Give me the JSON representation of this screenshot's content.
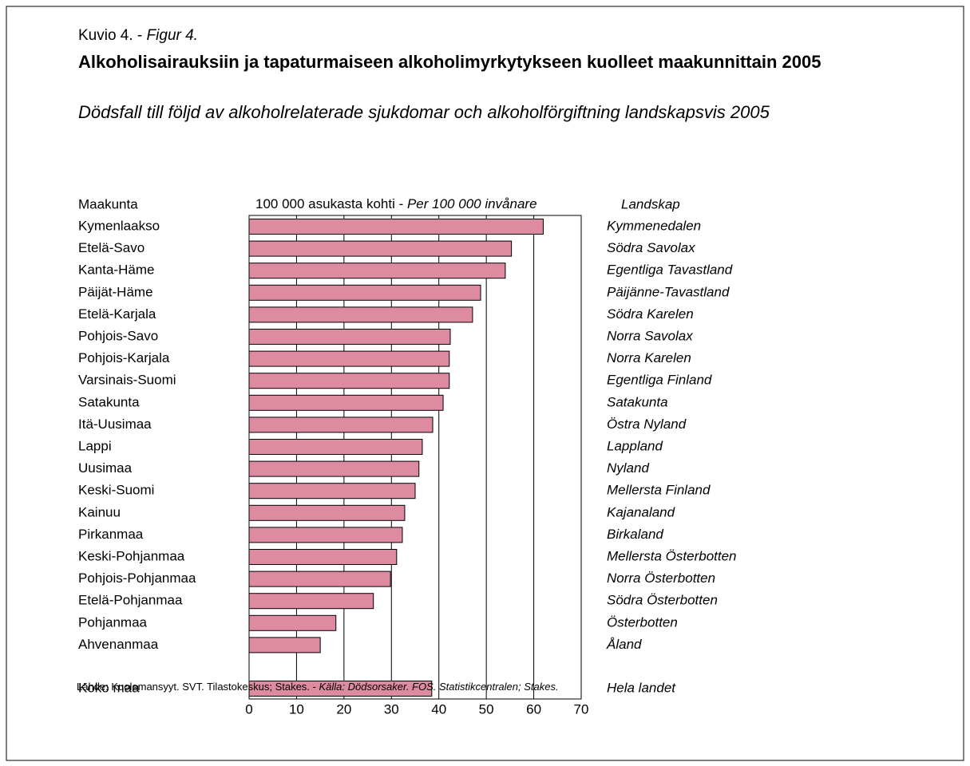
{
  "chart_data": {
    "type": "bar",
    "figure_label": "Kuvio 4. - ",
    "figure_label_sv": "Figur 4.",
    "title": "Alkoholisairauksiin ja tapaturmaiseen alkoholimyrkytykseen kuolleet maakunnittain 2005",
    "subtitle": "Dödsfall till följd av alkoholrelaterade sjukdomar och alkoholförgiftning landskapsvis 2005",
    "left_header": "Maakunta",
    "unit_label": "100 000 asukasta kohti - ",
    "unit_label_sv": "Per 100 000 invånare",
    "right_header": "Landskap",
    "categories": [
      "Kymenlaakso",
      "Etelä-Savo",
      "Kanta-Häme",
      "Päijät-Häme",
      "Etelä-Karjala",
      "Pohjois-Savo",
      "Pohjois-Karjala",
      "Varsinais-Suomi",
      "Satakunta",
      "Itä-Uusimaa",
      "Lappi",
      "Uusimaa",
      "Keski-Suomi",
      "Kainuu",
      "Pirkanmaa",
      "Keski-Pohjanmaa",
      "Pohjois-Pohjanmaa",
      "Etelä-Pohjanmaa",
      "Pohjanmaa",
      "Ahvenanmaa"
    ],
    "categories_sv": [
      "Kymmenedalen",
      "Södra Savolax",
      "Egentliga Tavastland",
      "Päijänne-Tavastland",
      "Södra Karelen",
      "Norra Savolax",
      "Norra Karelen",
      "Egentliga Finland",
      "Satakunta",
      "Östra Nyland",
      "Lappland",
      "Nyland",
      "Mellersta Finland",
      "Kajanaland",
      "Birkaland",
      "Mellersta Österbotten",
      "Norra Österbotten",
      "Södra Österbotten",
      "Österbotten",
      "Åland"
    ],
    "values": [
      62,
      55.3,
      54,
      48.8,
      47.1,
      42.4,
      42.2,
      42.2,
      40.9,
      38.7,
      36.5,
      35.8,
      35,
      32.8,
      32.3,
      31.1,
      29.8,
      26.2,
      18.3,
      15
    ],
    "total": {
      "label": "Koko maa",
      "label_sv": "Hela landet",
      "value": 38.5
    },
    "color": "#de8aa0",
    "xlim": [
      0,
      70
    ],
    "xticks": [
      0,
      10,
      20,
      30,
      40,
      50,
      60,
      70
    ],
    "grid": true,
    "source": "Lähde: Kuolemansyyt. SVT. Tilastokeskus; Stakes. - ",
    "source_sv": "Källa: Dödsorsaker. FOS. Statistikcentralen; Stakes."
  }
}
